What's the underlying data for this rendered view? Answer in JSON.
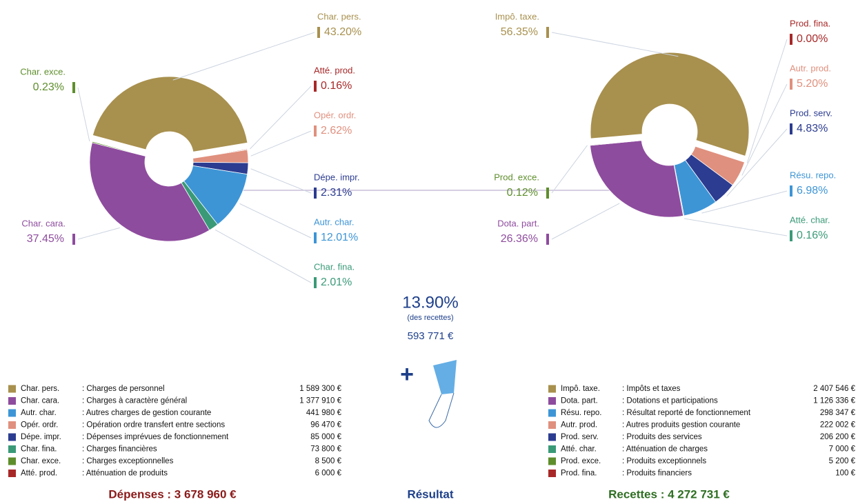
{
  "chart_data": [
    {
      "type": "pie",
      "title": "Dépenses : 3 678 960 €",
      "categories": [
        "Char. pers.",
        "Atté. prod.",
        "Opér. ordr.",
        "Dépe. impr.",
        "Autr. char.",
        "Char. fina.",
        "Char. cara.",
        "Char. exce."
      ],
      "values": [
        43.2,
        0.16,
        2.62,
        2.31,
        12.01,
        2.01,
        37.45,
        0.23
      ],
      "value_labels": [
        "43.20%",
        "0.16%",
        "2.62%",
        "2.31%",
        "12.01%",
        "2.01%",
        "37.45%",
        "0.23%"
      ],
      "colors": [
        "#a8904e",
        "#a82828",
        "#e0907e",
        "#2c3c90",
        "#3d95d6",
        "#3a9a78",
        "#8e4c9e",
        "#5e8e2c"
      ],
      "legend": [
        [
          "Char. pers.",
          ": Charges de personnel",
          "1 589 300 €"
        ],
        [
          "Char. cara.",
          ": Charges à caractère général",
          "1 377 910 €"
        ],
        [
          "Autr. char.",
          ": Autres charges de gestion courante",
          "441 980 €"
        ],
        [
          "Opér. ordr.",
          ": Opération ordre transfert entre sections",
          "96 470 €"
        ],
        [
          "Dépe. impr.",
          ": Dépenses imprévues de fonctionnement",
          "85 000 €"
        ],
        [
          "Char. fina.",
          ": Charges financières",
          "73 800 €"
        ],
        [
          "Char. exce.",
          ": Charges exceptionnelles",
          "8 500 €"
        ],
        [
          "Atté. prod.",
          ": Atténuation de produits",
          "6 000 €"
        ]
      ]
    },
    {
      "type": "pie",
      "title": "Recettes : 4 272 731 €",
      "categories": [
        "Impô. taxe.",
        "Prod. fina.",
        "Autr. prod.",
        "Prod. serv.",
        "Résu. repo.",
        "Atté. char.",
        "Dota. part.",
        "Prod. exce."
      ],
      "values": [
        56.35,
        0,
        5.2,
        4.83,
        6.98,
        0.16,
        26.36,
        0.12
      ],
      "value_labels": [
        "56.35%",
        "0.00%",
        "5.20%",
        "4.83%",
        "6.98%",
        "0.16%",
        "26.36%",
        "0.12%"
      ],
      "colors": [
        "#a8904e",
        "#a82828",
        "#e0907e",
        "#2c3c90",
        "#3d95d6",
        "#3a9a78",
        "#8e4c9e",
        "#5e8e2c"
      ],
      "legend": [
        [
          "Impô. taxe.",
          ": Impôts et taxes",
          "2 407 546 €"
        ],
        [
          "Dota. part.",
          ": Dotations et participations",
          "1 126 336 €"
        ],
        [
          "Résu. repo.",
          ": Résultat reporté de fonctionnement",
          "298 347 €"
        ],
        [
          "Autr. prod.",
          ": Autres produits gestion courante",
          "222 002 €"
        ],
        [
          "Prod. serv.",
          ": Produits des services",
          "206 200 €"
        ],
        [
          "Atté. char.",
          ": Atténuation de charges",
          "7 000 €"
        ],
        [
          "Prod. exce.",
          ": Produits exceptionnels",
          "5 200 €"
        ],
        [
          "Prod. fina.",
          ": Produits financiers",
          "100 €"
        ]
      ]
    }
  ],
  "result": {
    "percent": "13.90%",
    "note": "(des recettes)",
    "amount": "593 771 €",
    "label": "Résultat"
  }
}
